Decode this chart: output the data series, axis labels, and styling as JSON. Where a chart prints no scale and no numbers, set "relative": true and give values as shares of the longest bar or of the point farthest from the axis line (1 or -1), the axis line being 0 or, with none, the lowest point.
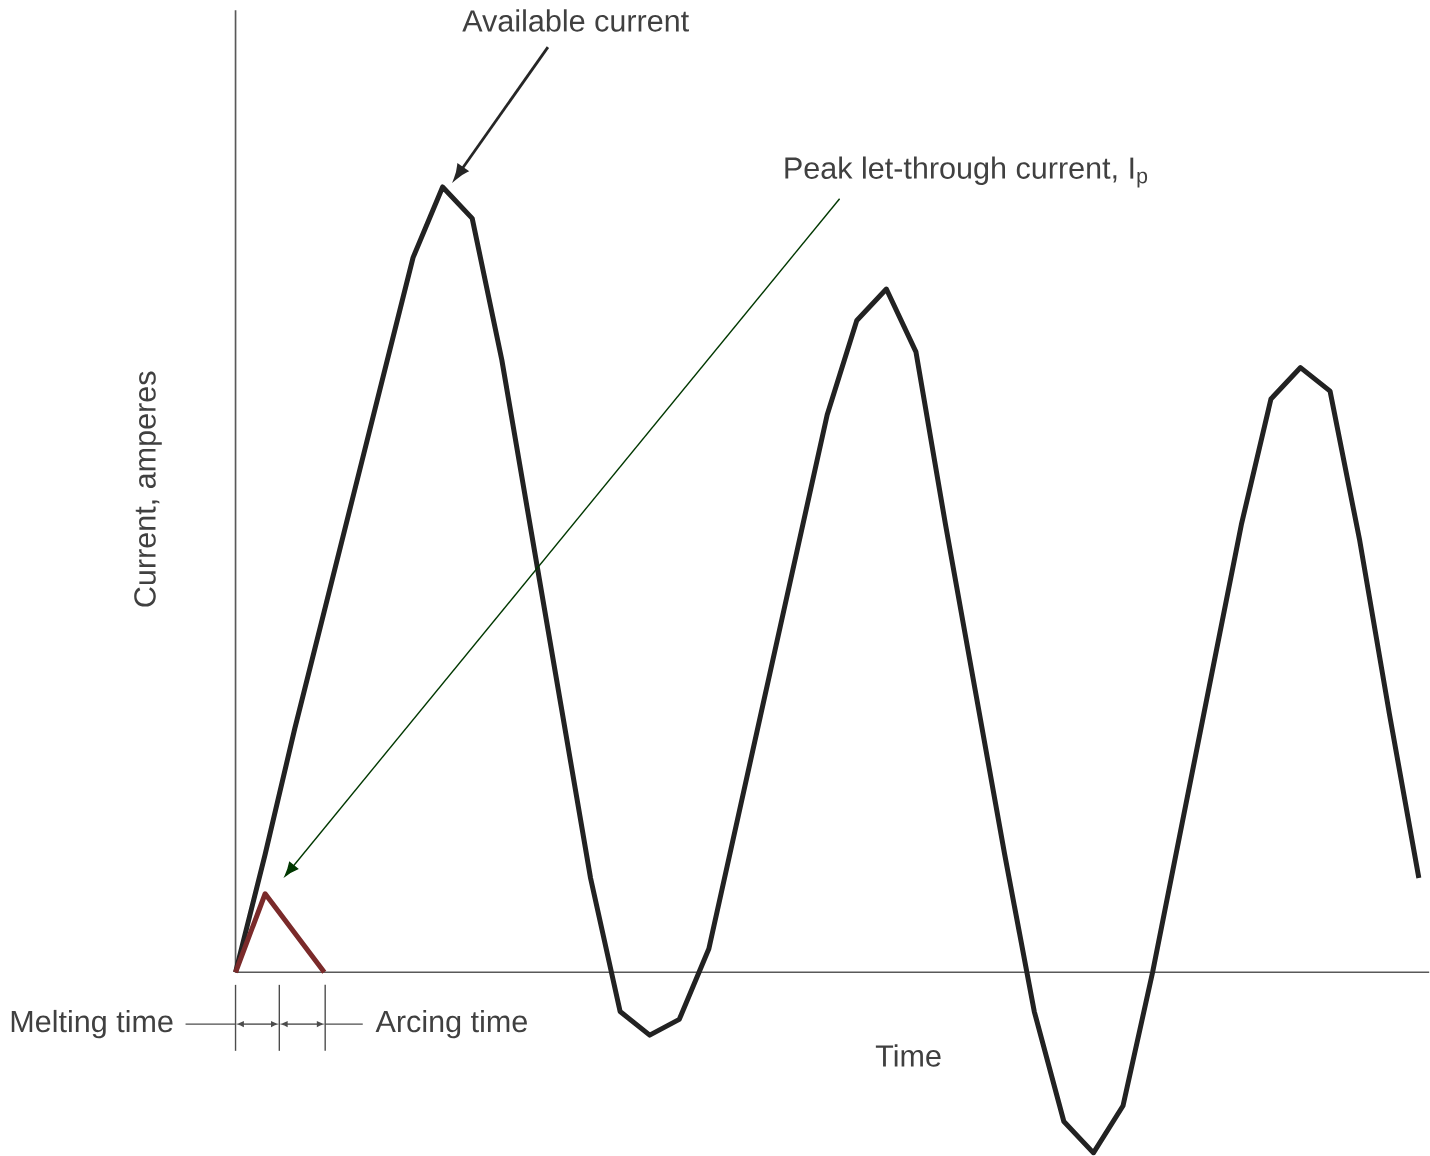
{
  "chart_data": {
    "type": "line",
    "relative": true,
    "xlabel": "Time",
    "ylabel": "Current, amperes",
    "categories": [
      null,
      null,
      null,
      null,
      null,
      null,
      null,
      null,
      null,
      null,
      null,
      null,
      null,
      null,
      null,
      null,
      null,
      null,
      null,
      null,
      null,
      null,
      null,
      null,
      null,
      null,
      null,
      null,
      null,
      null,
      null,
      null,
      null,
      null,
      null,
      null,
      null,
      null,
      null,
      null,
      null
    ],
    "series": [
      {
        "color": "#222222",
        "values": [
          0,
          0.15,
          0.31,
          0.46,
          0.61,
          0.76,
          0.91,
          1,
          0.96,
          0.78,
          0.56,
          0.34,
          0.12,
          -0.05,
          -0.08,
          -0.06,
          0.03,
          0.2,
          0.37,
          0.54,
          0.71,
          0.83,
          0.87,
          0.79,
          0.57,
          0.36,
          0.15,
          -0.05,
          -0.19,
          -0.23,
          -0.17,
          0,
          0.19,
          0.38,
          0.57,
          0.73,
          0.77,
          0.74,
          0.55,
          0.33,
          0.12
        ]
      },
      {
        "color": "#7a2a2a",
        "values": [
          0,
          0.1,
          0.05,
          0,
          null,
          null,
          null,
          null,
          null,
          null,
          null,
          null,
          null,
          null,
          null,
          null,
          null,
          null,
          null,
          null,
          null,
          null,
          null,
          null,
          null,
          null,
          null,
          null,
          null,
          null,
          null,
          null,
          null,
          null,
          null,
          null,
          null,
          null,
          null,
          null,
          null
        ]
      }
    ],
    "annotations": [
      "Available current",
      "Peak let-through current, I$_{p}$",
      "Melting time",
      "Arcing time"
    ]
  }
}
